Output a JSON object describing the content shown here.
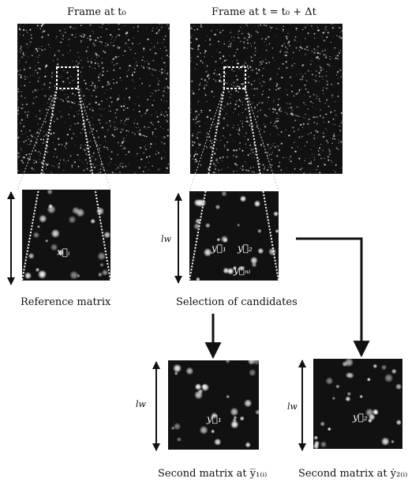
{
  "captions": {
    "frame_t0": "Frame at t₀",
    "frame_t1": "Frame at t = t₀ + Δt",
    "reference_matrix": "Reference matrix",
    "selection": "Selection of candidates",
    "second_matrix_y1": "Second matrix at y̅₁₍ᵢ₎",
    "second_matrix_y2": "Second matrix at ẏ₂₍ᵢ₎"
  },
  "labels": {
    "lw": "lᵥᵥ",
    "lw_text": "lw",
    "xi": "x⃗ᵢ",
    "y1": "y⃗₁",
    "y2": "y⃗₂",
    "yni": "y⃗ₙᵢ"
  },
  "colors": {
    "frame_bg": "#111111",
    "particle": "#ffffff",
    "guide_line": "#dddddd",
    "arrow": "#111111"
  }
}
